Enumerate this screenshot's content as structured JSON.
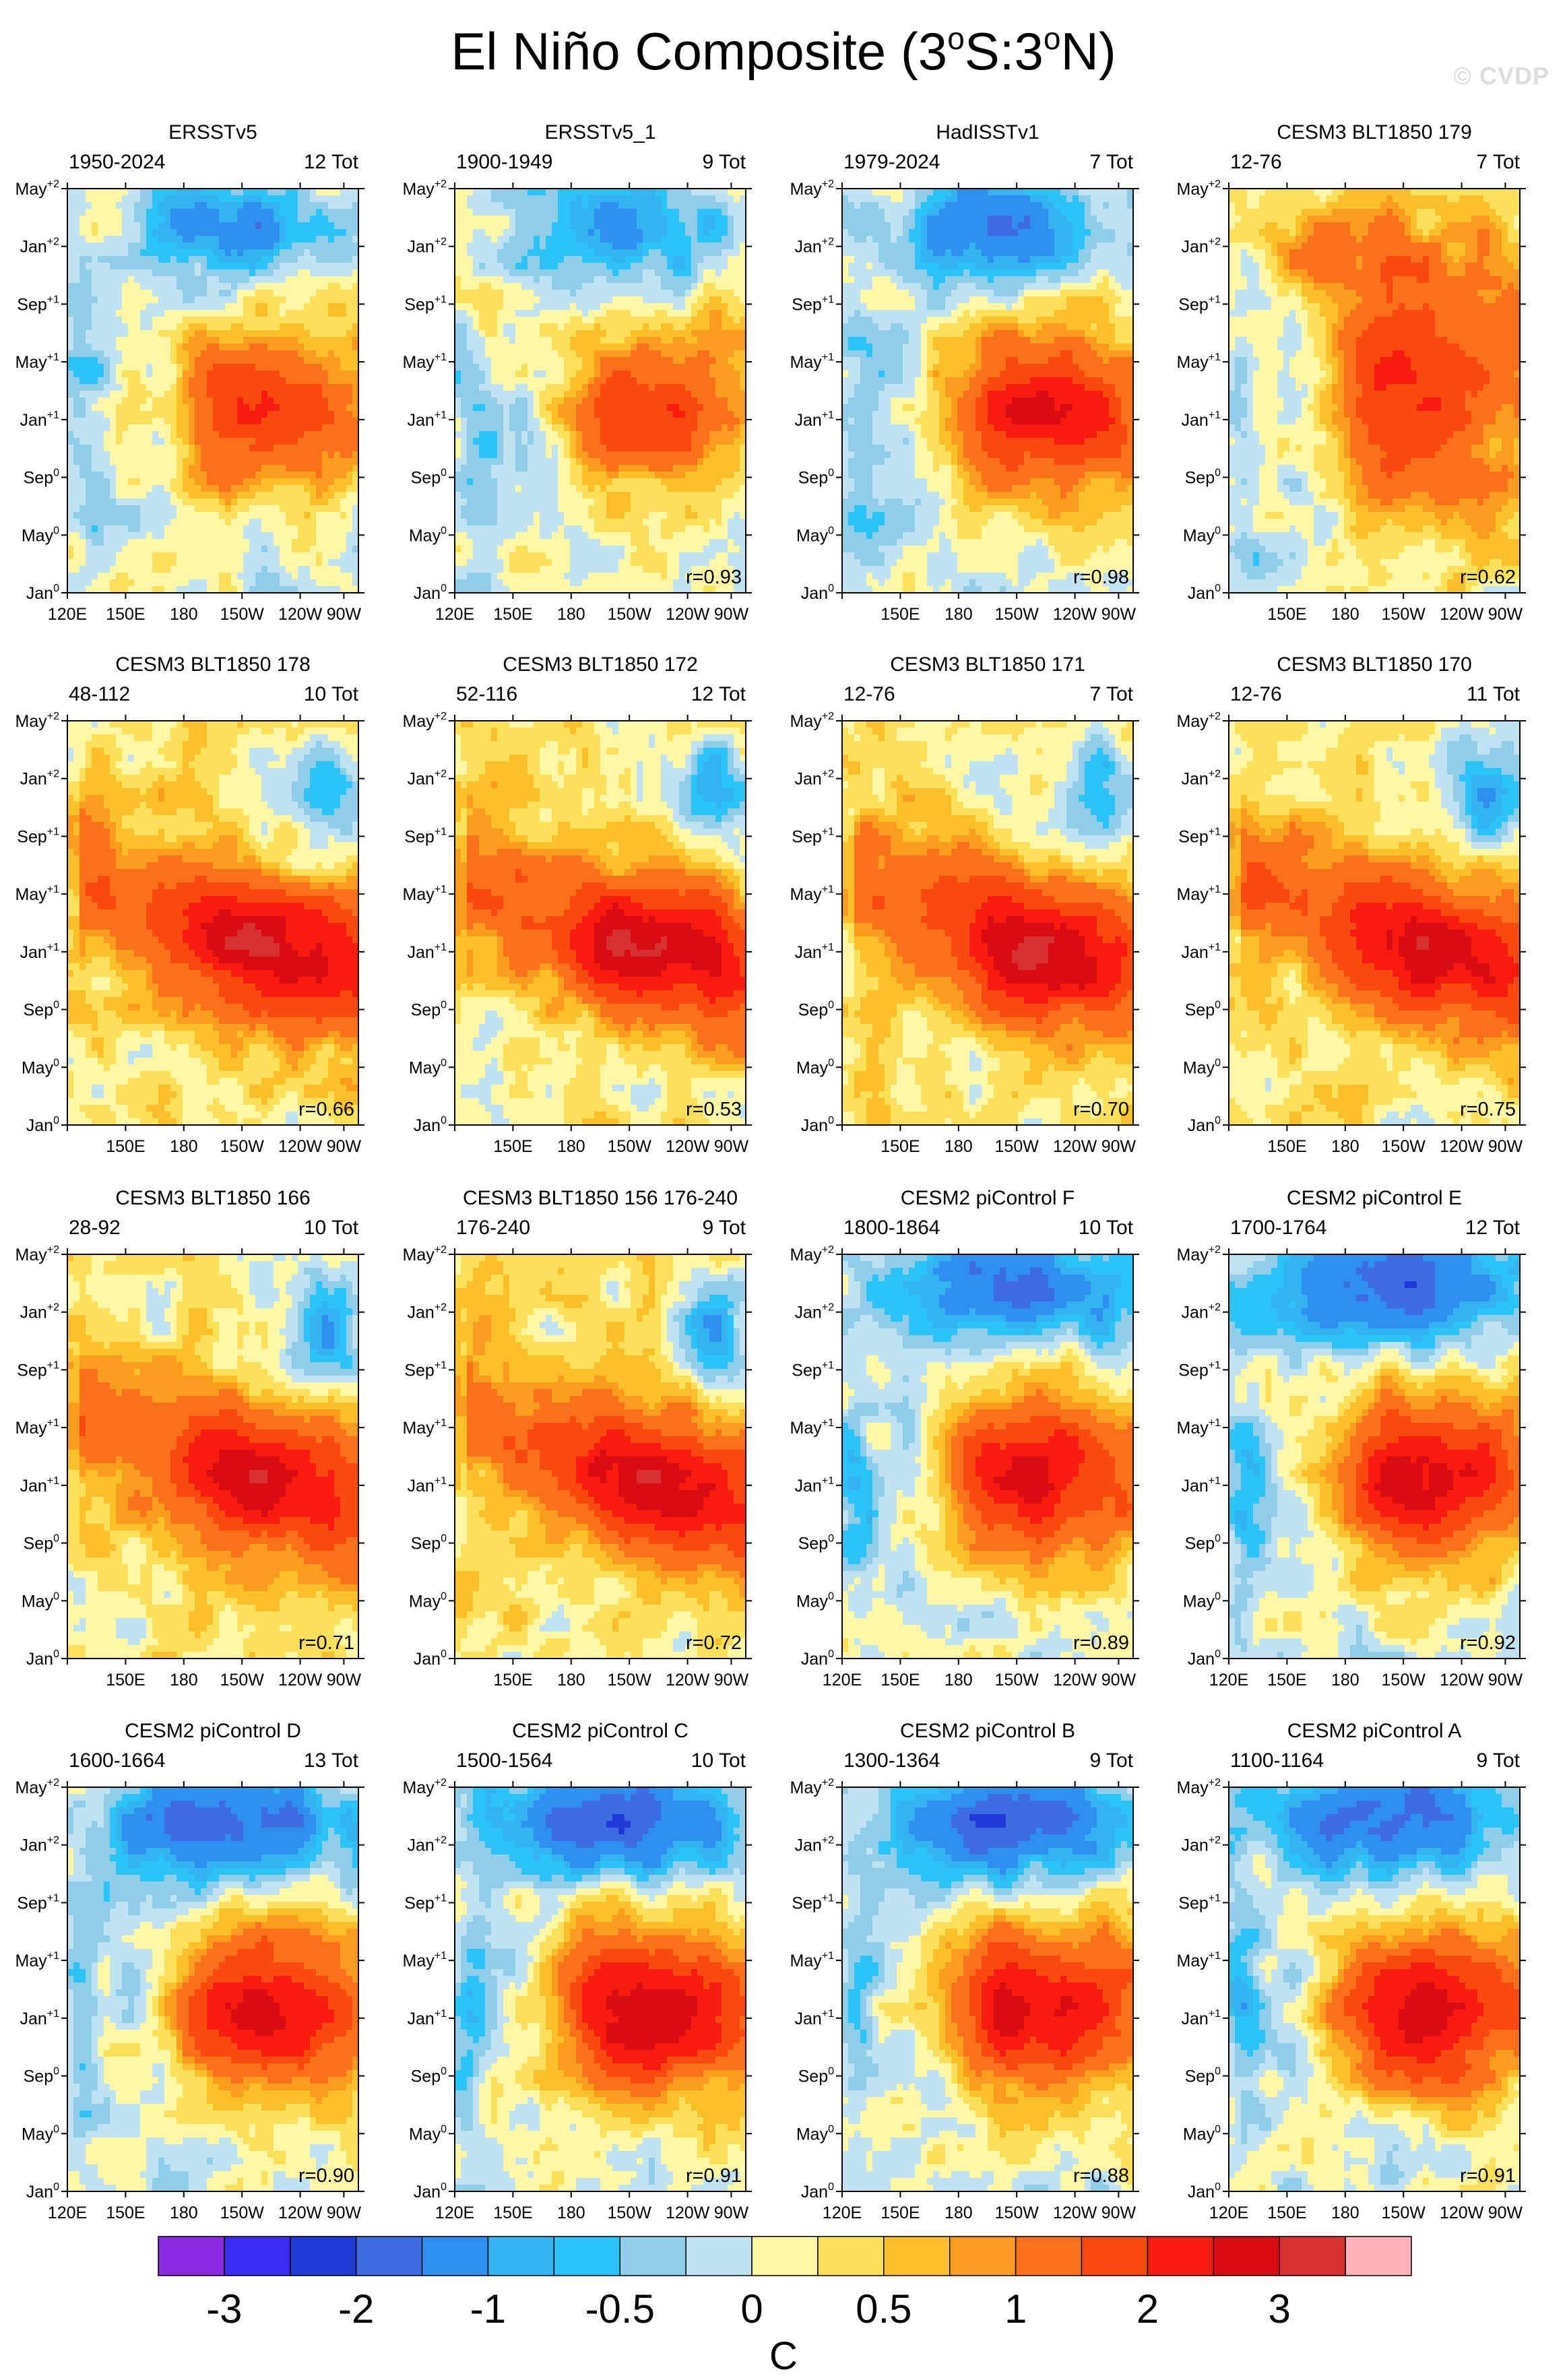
{
  "title": {
    "main": "El Niño Composite (3",
    "deg1": "o",
    "mid": "S:3",
    "deg2": "o",
    "end": "N)"
  },
  "watermark": "© CVDP",
  "y_ticks": [
    {
      "m": "May",
      "s": "+2"
    },
    {
      "m": "Jan",
      "s": "+2"
    },
    {
      "m": "Sep",
      "s": "+1"
    },
    {
      "m": "May",
      "s": "+1"
    },
    {
      "m": "Jan",
      "s": "+1"
    },
    {
      "m": "Sep",
      "s": "0"
    },
    {
      "m": "May",
      "s": "0"
    },
    {
      "m": "Jan",
      "s": "0"
    }
  ],
  "x_ticks": [
    "120E",
    "150E",
    "180",
    "150W",
    "120W",
    "90W"
  ],
  "colors": {
    "scale": [
      "#8a2be2",
      "#3a2cf0",
      "#1f3ad6",
      "#3d6be0",
      "#2f8ff0",
      "#33b4f0",
      "#2cc3f8",
      "#8fcde8",
      "#bfe3f2",
      "#fff6a6",
      "#fde05a",
      "#fbbf2a",
      "#fb9c1e",
      "#fb7018",
      "#fa4a10",
      "#f81b10",
      "#d80c12",
      "#d83030",
      "#ffb0b8"
    ]
  },
  "colorbar": {
    "labels": [
      "-3",
      "-2",
      "-1",
      "-0.5",
      "0",
      "0.5",
      "1",
      "2",
      "3"
    ],
    "unit": "C"
  },
  "chart_data": [
    {
      "type": "heatmap",
      "title": "ERSSTv5",
      "years": "1950-2024",
      "total": "12 Tot",
      "r": "",
      "pattern": "obs",
      "peak": 0.78,
      "show_120e": true
    },
    {
      "type": "heatmap",
      "title": "ERSSTv5_1",
      "years": "1900-1949",
      "total": "9 Tot",
      "r": "r=0.93",
      "pattern": "obs_weak",
      "peak": 0.7,
      "show_120e": true
    },
    {
      "type": "heatmap",
      "title": "HadISSTv1",
      "years": "1979-2024",
      "total": "7 Tot",
      "r": "r=0.98",
      "pattern": "obs_strong",
      "peak": 0.85,
      "show_120e": false
    },
    {
      "type": "heatmap",
      "title": "CESM3 BLT1850 179",
      "years": "12-76",
      "total": "7 Tot",
      "r": "r=0.62",
      "pattern": "persist",
      "peak": 0.8,
      "show_120e": false
    },
    {
      "type": "heatmap",
      "title": "CESM3 BLT1850 178",
      "years": "48-112",
      "total": "10 Tot",
      "r": "r=0.66",
      "pattern": "slant",
      "peak": 0.72,
      "show_120e": false
    },
    {
      "type": "heatmap",
      "title": "CESM3 BLT1850 172",
      "years": "52-116",
      "total": "12 Tot",
      "r": "r=0.53",
      "pattern": "slant",
      "peak": 0.7,
      "show_120e": false
    },
    {
      "type": "heatmap",
      "title": "CESM3 BLT1850 171",
      "years": "12-76",
      "total": "7 Tot",
      "r": "r=0.70",
      "pattern": "slant",
      "peak": 0.72,
      "show_120e": false
    },
    {
      "type": "heatmap",
      "title": "CESM3 BLT1850 170",
      "years": "12-76",
      "total": "11 Tot",
      "r": "r=0.75",
      "pattern": "slant",
      "peak": 0.68,
      "show_120e": false
    },
    {
      "type": "heatmap",
      "title": "CESM3 BLT1850 166",
      "years": "28-92",
      "total": "10 Tot",
      "r": "r=0.71",
      "pattern": "slant",
      "peak": 0.66,
      "show_120e": false
    },
    {
      "type": "heatmap",
      "title": "CESM3 BLT1850 156 176-240",
      "years": "176-240",
      "total": "9 Tot",
      "r": "r=0.72",
      "pattern": "slant",
      "peak": 0.74,
      "show_120e": false
    },
    {
      "type": "heatmap",
      "title": "CESM2 piControl F",
      "years": "1800-1864",
      "total": "10 Tot",
      "r": "r=0.89",
      "pattern": "cesm2",
      "peak": 0.85,
      "show_120e": true
    },
    {
      "type": "heatmap",
      "title": "CESM2 piControl E",
      "years": "1700-1764",
      "total": "12 Tot",
      "r": "r=0.92",
      "pattern": "cesm2",
      "peak": 0.9,
      "show_120e": true
    },
    {
      "type": "heatmap",
      "title": "CESM2 piControl D",
      "years": "1600-1664",
      "total": "13 Tot",
      "r": "r=0.90",
      "pattern": "cesm2",
      "peak": 0.88,
      "show_120e": true
    },
    {
      "type": "heatmap",
      "title": "CESM2 piControl C",
      "years": "1500-1564",
      "total": "10 Tot",
      "r": "r=0.91",
      "pattern": "cesm2",
      "peak": 0.95,
      "show_120e": true
    },
    {
      "type": "heatmap",
      "title": "CESM2 piControl B",
      "years": "1300-1364",
      "total": "9 Tot",
      "r": "r=0.88",
      "pattern": "cesm2",
      "peak": 0.87,
      "show_120e": true
    },
    {
      "type": "heatmap",
      "title": "CESM2 piControl A",
      "years": "1100-1164",
      "total": "9 Tot",
      "r": "r=0.91",
      "pattern": "cesm2",
      "peak": 0.88,
      "show_120e": true
    }
  ]
}
